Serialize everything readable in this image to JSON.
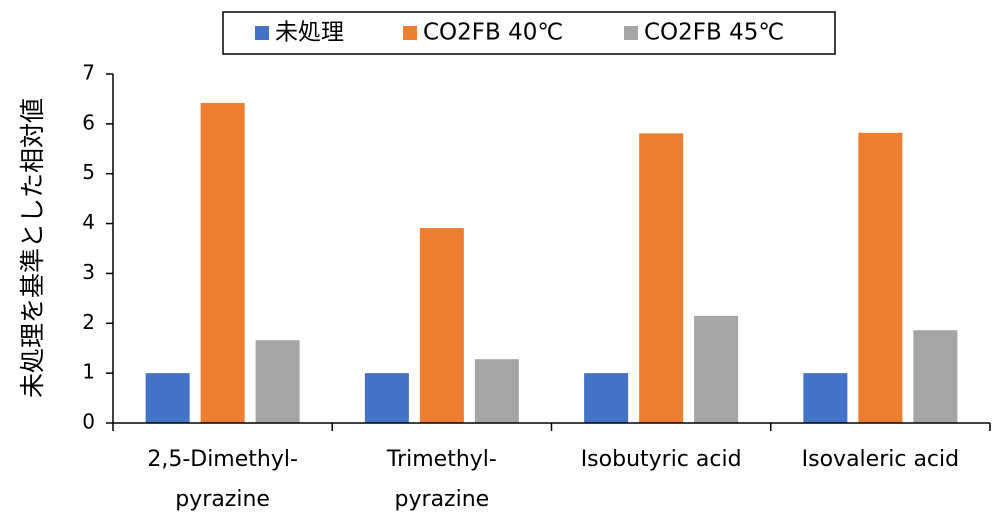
{
  "chart_data": {
    "type": "bar",
    "title": "",
    "xlabel": "",
    "ylabel": "未処理を基準とした相対値",
    "ylim": [
      0,
      7
    ],
    "yticks": [
      0,
      1,
      2,
      3,
      4,
      5,
      6,
      7
    ],
    "grid": false,
    "legend_position": "top",
    "categories": [
      [
        "2,5-Dimethyl-",
        "pyrazine"
      ],
      [
        "Trimethyl-",
        "pyrazine"
      ],
      [
        "Isobutyric acid"
      ],
      [
        "Isovaleric acid"
      ]
    ],
    "series": [
      {
        "name": "未処理",
        "color": "#4472C4",
        "values": [
          1.0,
          1.0,
          1.0,
          1.0
        ]
      },
      {
        "name": "CO2FB 40℃",
        "color": "#ED7D31",
        "values": [
          6.42,
          3.91,
          5.81,
          5.82
        ]
      },
      {
        "name": "CO2FB 45℃",
        "color": "#A5A5A5",
        "values": [
          1.66,
          1.28,
          2.15,
          1.86
        ]
      }
    ]
  }
}
